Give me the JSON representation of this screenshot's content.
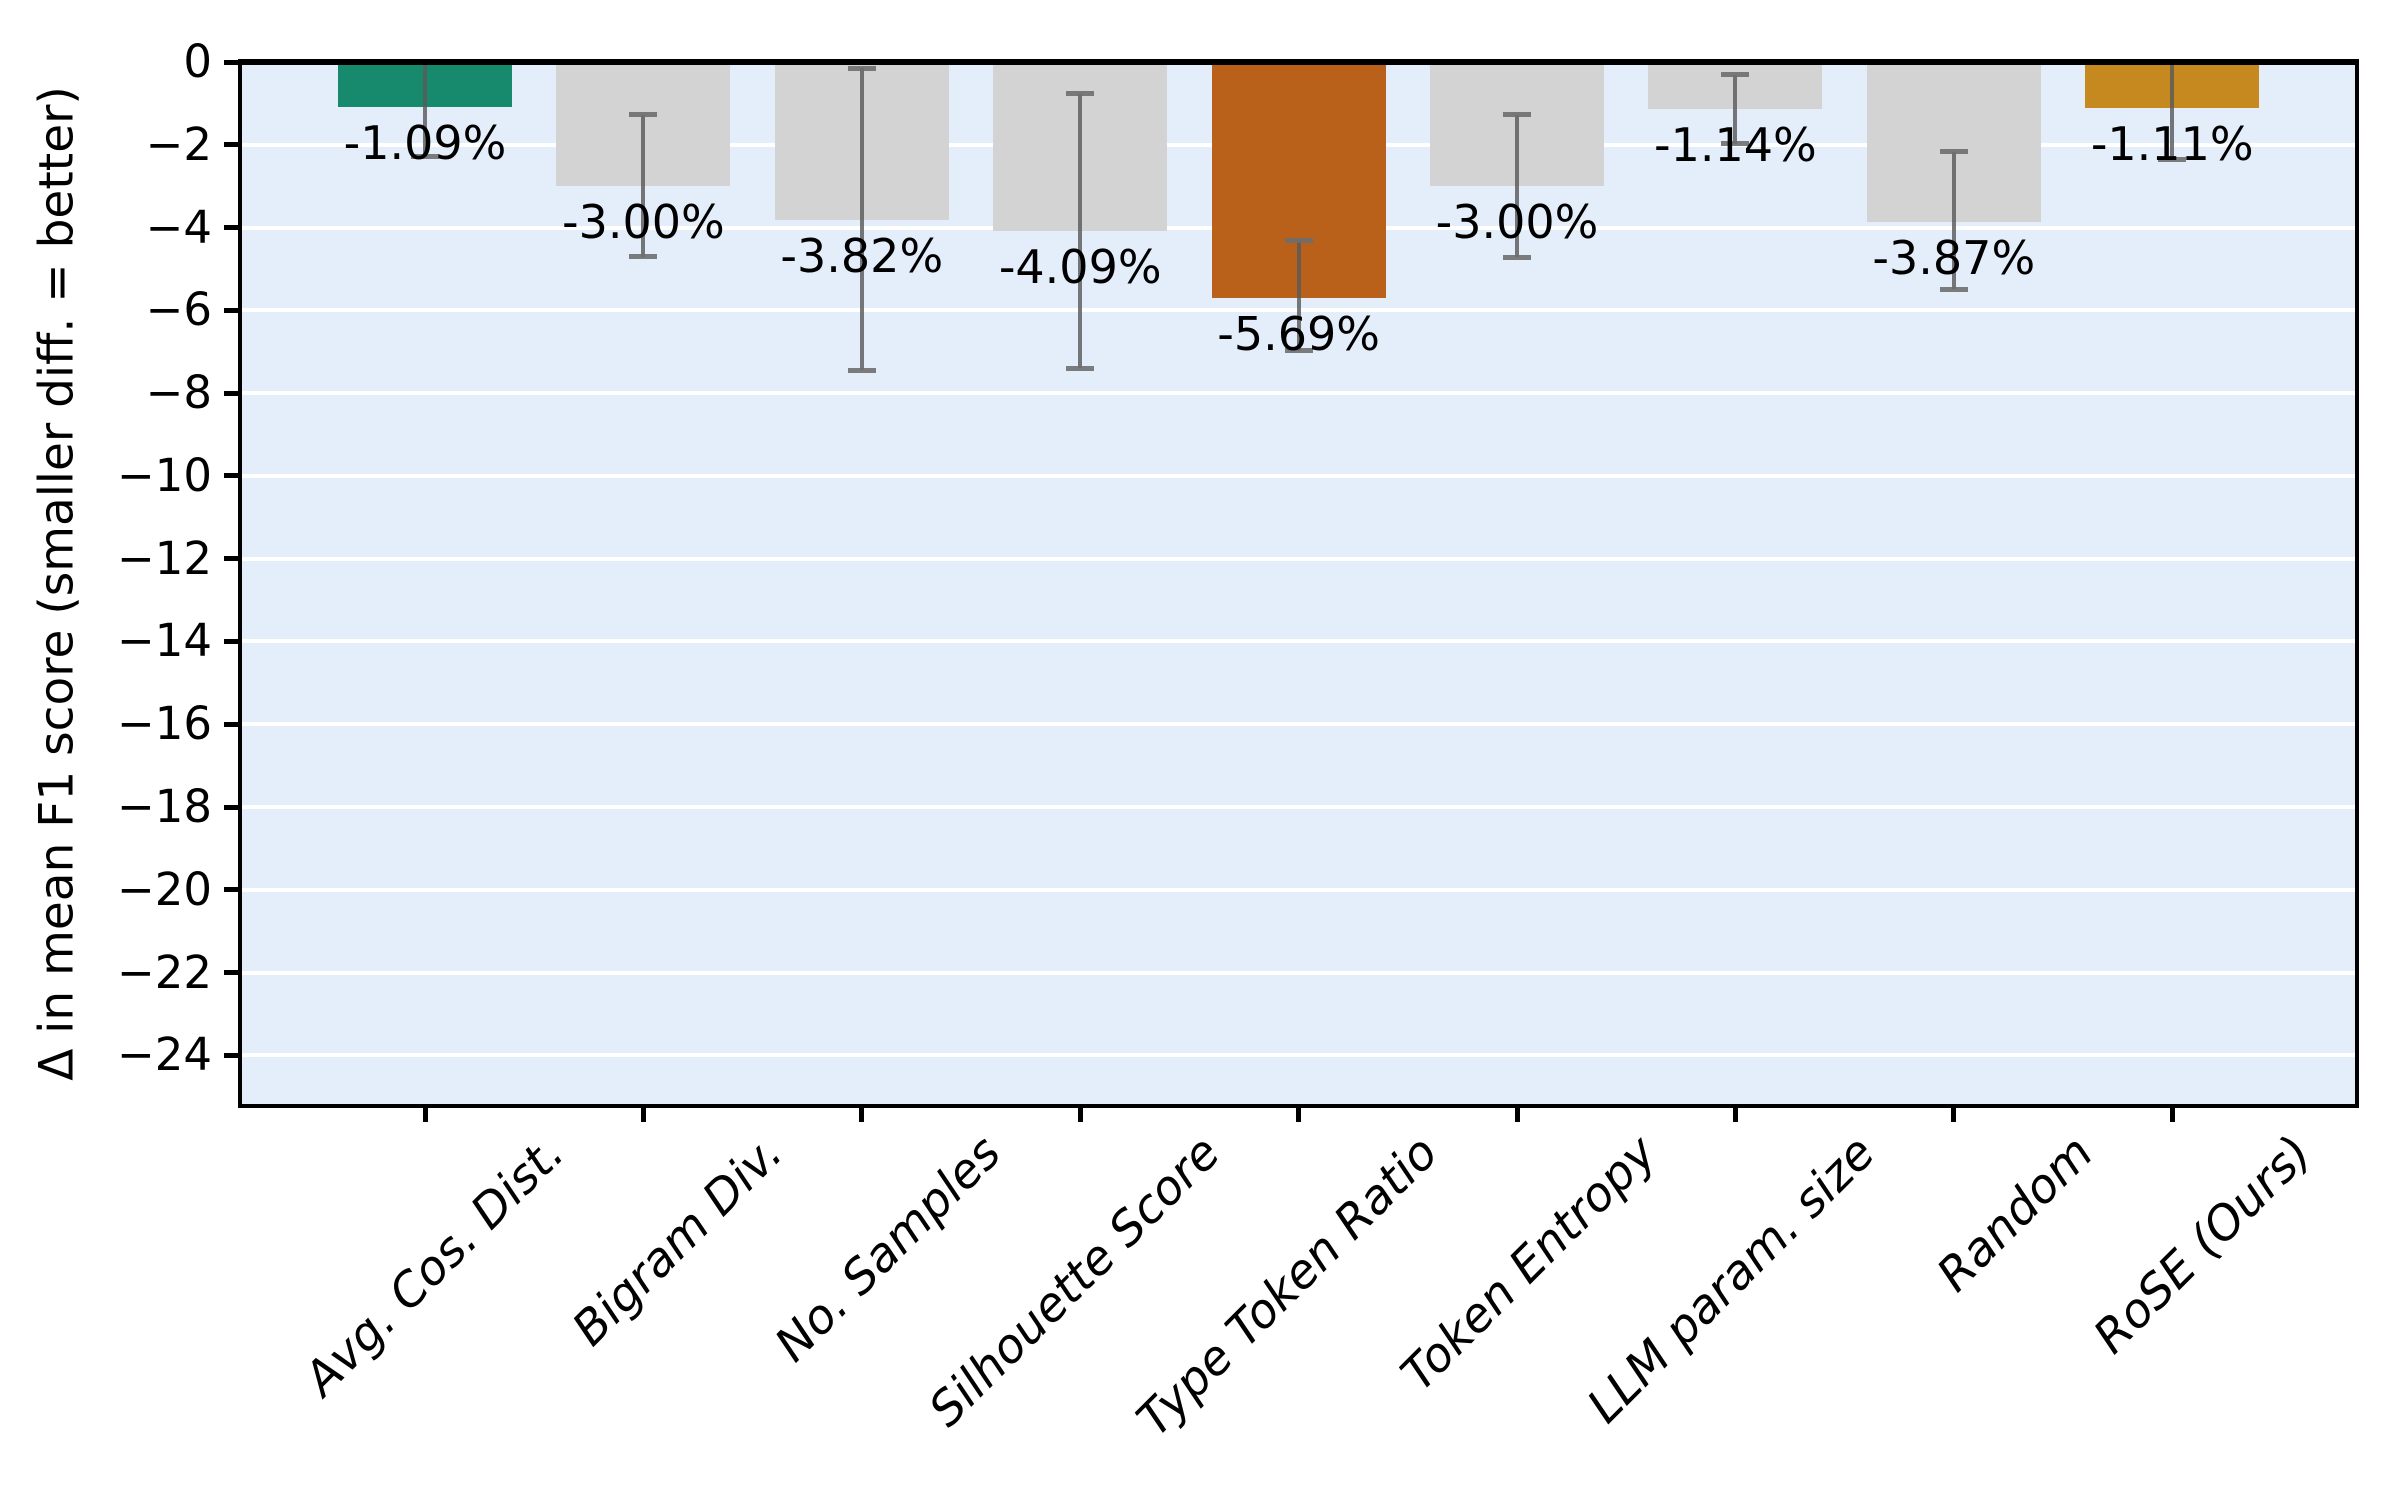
{
  "chart_data": {
    "type": "bar",
    "title": "",
    "xlabel": "",
    "ylabel": "Δ in mean F1 score (smaller diff. = better)",
    "ylim": [
      -25.2,
      0
    ],
    "grid": "horizontal-white-gridlines",
    "legend": "none",
    "categories": [
      "Avg. Cos. Dist.",
      "Bigram Div.",
      "No. Samples",
      "Silhouette Score",
      "Type Token Ratio",
      "Token Entropy",
      "LLM param. size",
      "Random",
      "RoSE (Ours)"
    ],
    "values": [
      -1.09,
      -3.0,
      -3.82,
      -4.09,
      -5.69,
      -3.0,
      -1.14,
      -3.87,
      -1.11
    ],
    "value_labels": [
      "-1.09%",
      "-3.00%",
      "-3.82%",
      "-4.09%",
      "-5.69%",
      "-3.00%",
      "-1.14%",
      "-3.87%",
      "-1.11%"
    ],
    "error_high": [
      0,
      -1.28,
      -0.15,
      -0.77,
      -4.31,
      -1.28,
      -0.31,
      -2.17,
      0
    ],
    "error_low": [
      -2.29,
      -4.71,
      -7.45,
      -7.4,
      -6.98,
      -4.72,
      -1.98,
      -5.49,
      -2.36
    ],
    "bar_colors": [
      "#178a6e",
      "#d3d3d3",
      "#d3d3d3",
      "#d3d3d3",
      "#b9601b",
      "#d3d3d3",
      "#d3d3d3",
      "#d3d3d3",
      "#c6891f"
    ],
    "yticks": [
      0,
      -2,
      -4,
      -6,
      -8,
      -10,
      -12,
      -14,
      -16,
      -18,
      -20,
      -22,
      -24
    ],
    "ytick_labels": [
      "0",
      "−2",
      "−4",
      "−6",
      "−8",
      "−10",
      "−12",
      "−14",
      "−16",
      "−18",
      "−20",
      "−22",
      "−24"
    ],
    "colors": {
      "plot_background": "#e4eefb",
      "gridline": "#ffffff",
      "axis": "#000000",
      "error_bar": "#5a5a5a",
      "bar_default_gray": "#d3d3d3",
      "bar_green_best_single": "#178a6e",
      "bar_orange_worst": "#b9601b",
      "bar_gold_ours": "#c6891f"
    }
  }
}
